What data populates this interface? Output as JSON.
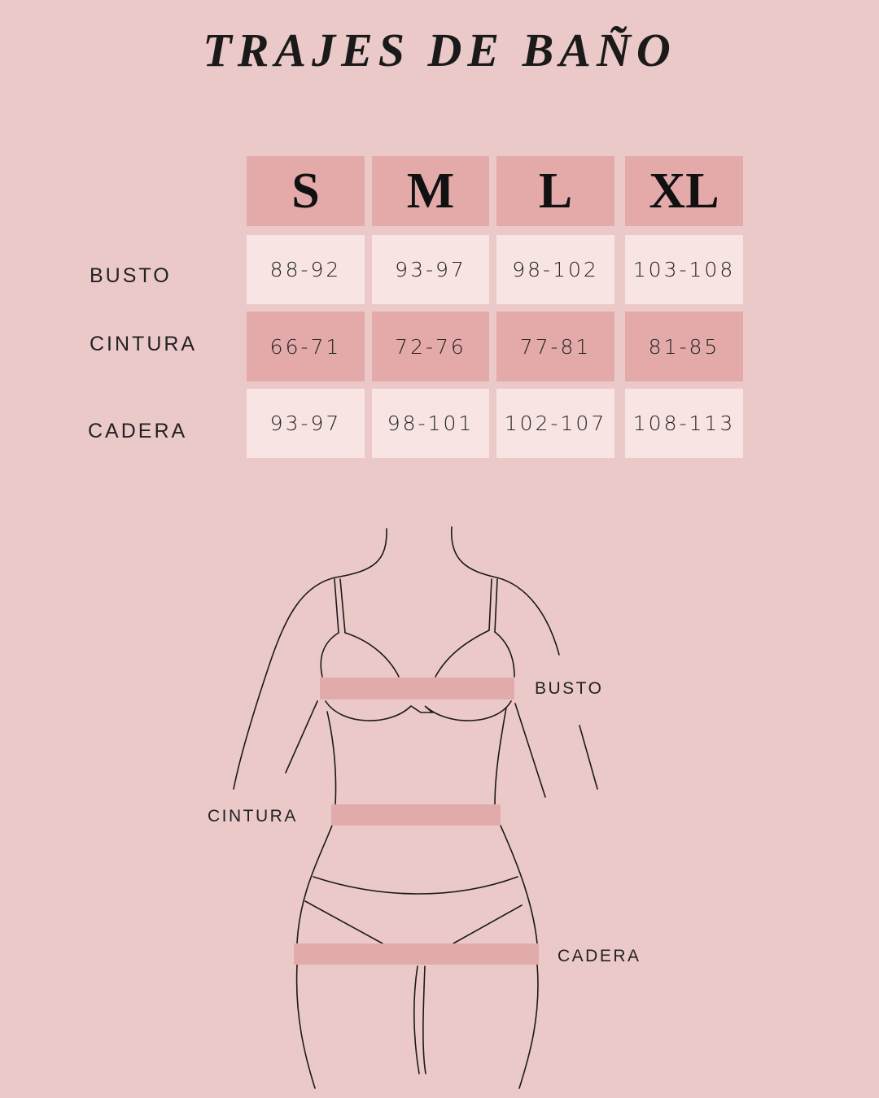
{
  "title": "TRAJES DE BAÑO",
  "table": {
    "sizes": [
      "S",
      "M",
      "L",
      "XL"
    ],
    "rows": [
      {
        "label": "BUSTO",
        "values": [
          "88-92",
          "93-97",
          "98-102",
          "103-108"
        ]
      },
      {
        "label": "CINTURA",
        "values": [
          "66-71",
          "72-76",
          "77-81",
          "81-85"
        ]
      },
      {
        "label": "CADERA",
        "values": [
          "93-97",
          "98-101",
          "102-107",
          "108-113"
        ]
      }
    ]
  },
  "figure": {
    "labels": {
      "busto": "BUSTO",
      "cintura": "CINTURA",
      "cadera": "CADERA"
    }
  },
  "colors": {
    "background": "#ecc9c9",
    "accent": "#e4aaaa",
    "light_cell": "#f9e4e4"
  }
}
